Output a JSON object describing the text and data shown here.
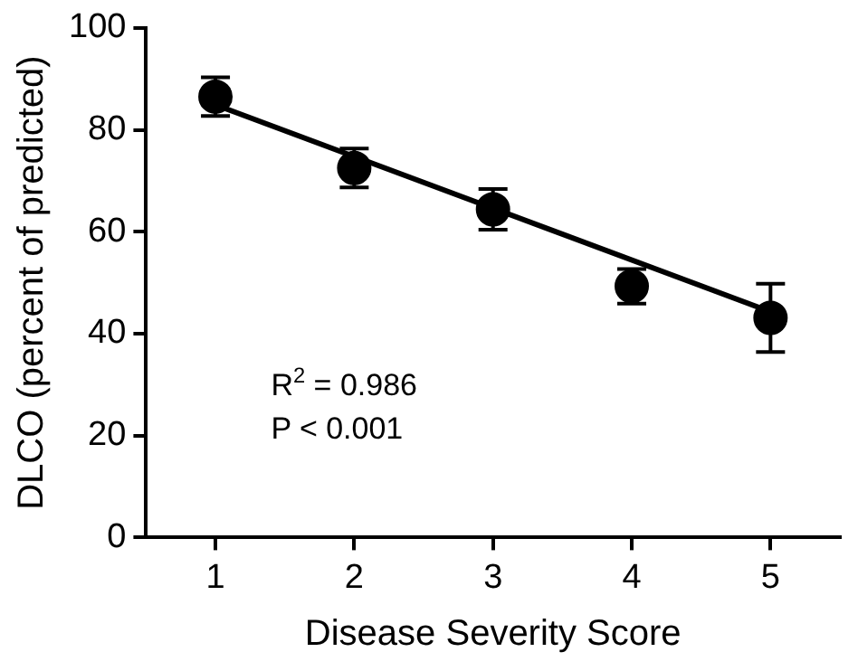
{
  "chart_data": {
    "type": "scatter",
    "xlabel": "Disease Severity Score",
    "ylabel": "DLCO (percent of predicted)",
    "xlim": [
      0.5,
      5.5
    ],
    "xticks": [
      1,
      2,
      3,
      4,
      5
    ],
    "ylim": [
      0,
      100
    ],
    "yticks": [
      0,
      20,
      40,
      60,
      80,
      100
    ],
    "grid": false,
    "legend": false,
    "marker": "circle",
    "series": [
      {
        "type": "scatter",
        "color": "#000000",
        "x": [
          1,
          2,
          3,
          4,
          5
        ],
        "values": [
          86.5,
          72.5,
          64.4,
          49.3,
          43.1
        ],
        "errors": [
          3.8,
          3.8,
          4,
          3.4,
          6.7
        ]
      },
      {
        "type": "line",
        "color": "#000000",
        "line_style": "solid",
        "marker": "none",
        "x": [
          1,
          5
        ],
        "values": [
          84.9,
          44.3
        ]
      }
    ],
    "annotations": [
      "R$^{2}$ = 0.986",
      "P < 0.001"
    ]
  }
}
